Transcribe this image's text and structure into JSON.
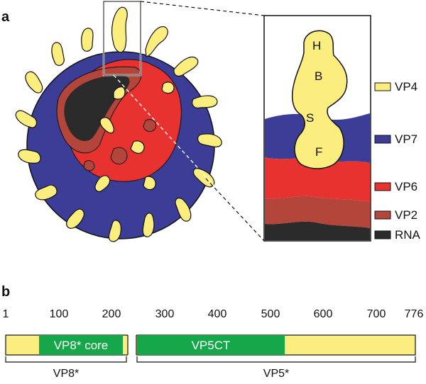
{
  "panel_a_label": "a",
  "panel_b_label": "b",
  "inset_domains": [
    "H",
    "B",
    "S",
    "F"
  ],
  "legend": [
    {
      "label": "VP4",
      "color": "#fbee7f"
    },
    {
      "label": "VP7",
      "color": "#3b3d97"
    },
    {
      "label": "VP6",
      "color": "#e7322f"
    },
    {
      "label": "VP2",
      "color": "#b3453a"
    },
    {
      "label": "RNA",
      "color": "#2b2b2b"
    }
  ],
  "colors": {
    "vp4": "#fbee7f",
    "vp7": "#3b3d97",
    "vp6": "#e7322f",
    "vp2": "#b3453a",
    "rna": "#2b2b2b",
    "domain_green": "#16a74b"
  },
  "ruler": {
    "ticks": [
      "1",
      "100",
      "200",
      "300",
      "400",
      "500",
      "600",
      "700",
      "776"
    ]
  },
  "domains": [
    {
      "label": "VP8* core"
    },
    {
      "label": "VP5CT"
    }
  ],
  "fragments": [
    {
      "label": "VP8*"
    },
    {
      "label": "VP5*"
    }
  ]
}
